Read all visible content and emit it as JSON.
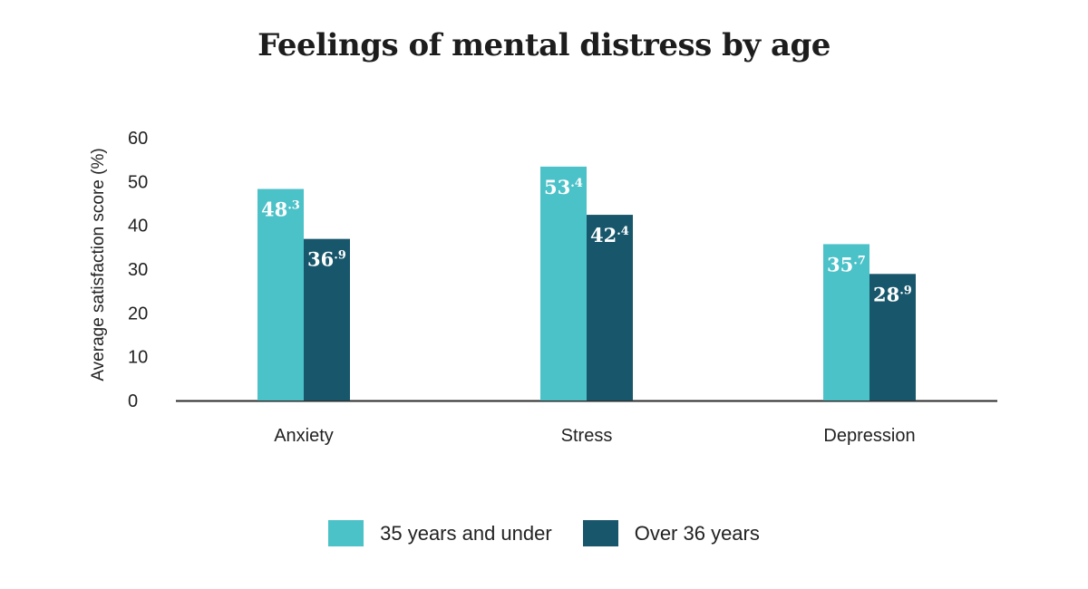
{
  "chart_data": {
    "type": "bar",
    "title": "Feelings of mental distress by age",
    "xlabel": "",
    "ylabel": "Average satisfaction score (%)",
    "ylim": [
      0,
      60
    ],
    "yticks": [
      "0",
      "10",
      "20",
      "30",
      "40",
      "50",
      "60"
    ],
    "grid": false,
    "legend_position": "bottom",
    "categories": [
      "Anxiety",
      "Stress",
      "Depression"
    ],
    "series": [
      {
        "name": "35 years and under",
        "color": "#4bc1c8",
        "values": [
          48.3,
          53.4,
          35.7
        ],
        "labels": [
          {
            "int": "48",
            "dec": ".3"
          },
          {
            "int": "53",
            "dec": ".4"
          },
          {
            "int": "35",
            "dec": ".7"
          }
        ]
      },
      {
        "name": "Over 36 years",
        "color": "#17566b",
        "values": [
          36.9,
          42.4,
          28.9
        ],
        "labels": [
          {
            "int": "36",
            "dec": ".9"
          },
          {
            "int": "42",
            "dec": ".4"
          },
          {
            "int": "28",
            "dec": ".9"
          }
        ]
      }
    ]
  }
}
